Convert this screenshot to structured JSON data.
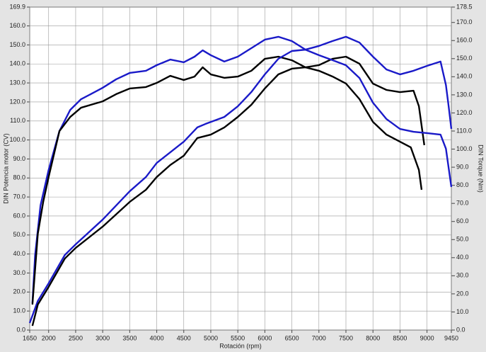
{
  "chart_data": {
    "type": "line",
    "xlabel": "Rotación (rpm)",
    "ylabel": "DIN Potencia motor (CV)",
    "y2label": "DIN Torque (Nm)",
    "xlim": [
      1650,
      9450
    ],
    "xticks": [
      1650,
      2000,
      2500,
      3000,
      3500,
      4000,
      4500,
      5000,
      5500,
      6000,
      6500,
      7000,
      7500,
      8000,
      8500,
      9000,
      9450
    ],
    "ylim": [
      0,
      169.9
    ],
    "yticks": [
      {
        "value": 0,
        "label": "0.0"
      },
      {
        "value": 10,
        "label": "10.0"
      },
      {
        "value": 20,
        "label": "20.0"
      },
      {
        "value": 30,
        "label": "30.0"
      },
      {
        "value": 40,
        "label": "40.0"
      },
      {
        "value": 50,
        "label": "50.0"
      },
      {
        "value": 60,
        "label": "60.0"
      },
      {
        "value": 70,
        "label": "70.0"
      },
      {
        "value": 80,
        "label": "80.0"
      },
      {
        "value": 90,
        "label": "90.0"
      },
      {
        "value": 100,
        "label": "100.0"
      },
      {
        "value": 110,
        "label": "110.0"
      },
      {
        "value": 120,
        "label": "120.0"
      },
      {
        "value": 130,
        "label": "130.0"
      },
      {
        "value": 140,
        "label": "140.0"
      },
      {
        "value": 150,
        "label": "150.0"
      },
      {
        "value": 160,
        "label": "160.0"
      },
      169.9
    ],
    "y2lim": [
      0,
      178.5
    ],
    "y2ticks": [
      {
        "value": 0,
        "label": "0.0"
      },
      {
        "value": 10,
        "label": "10.0"
      },
      {
        "value": 20,
        "label": "20.0"
      },
      {
        "value": 30,
        "label": "30.0"
      },
      {
        "value": 40,
        "label": "40.0"
      },
      {
        "value": 50,
        "label": "50.0"
      },
      {
        "value": 60,
        "label": "60.0"
      },
      {
        "value": 70,
        "label": "70.0"
      },
      {
        "value": 80,
        "label": "80.0"
      },
      {
        "value": 90,
        "label": "90.0"
      },
      {
        "value": 100,
        "label": "100.0"
      },
      {
        "value": 110,
        "label": "110.0"
      },
      {
        "value": 120,
        "label": "120.0"
      },
      {
        "value": 130,
        "label": "130.0"
      },
      {
        "value": 140,
        "label": "140.0"
      },
      {
        "value": 150,
        "label": "150.0"
      },
      {
        "value": 160,
        "label": "160.0"
      },
      {
        "value": 170,
        "label": "170.0"
      },
      178.5
    ],
    "grid": true,
    "series": [
      {
        "color": "#1a1ac8",
        "axis": "y2",
        "x": [
          1700,
          1750,
          1850,
          2000,
          2200,
          2400,
          2600,
          2800,
          3000,
          3250,
          3500,
          3800,
          4000,
          4250,
          4500,
          4700,
          4850,
          5000,
          5250,
          5500,
          5750,
          6000,
          6250,
          6500,
          6750,
          7000,
          7250,
          7500,
          7750,
          8000,
          8250,
          8500,
          8750,
          9000,
          9250,
          9350,
          9400,
          9450
        ],
        "values": [
          14.9,
          41.5,
          68.9,
          88.5,
          110,
          121.7,
          127.6,
          130.7,
          133.9,
          138.6,
          142.1,
          143.3,
          146.4,
          149.5,
          148,
          151.1,
          154.6,
          151.9,
          148.4,
          151.1,
          155.8,
          160.5,
          162.1,
          159.7,
          155,
          157,
          159.7,
          162.1,
          158.9,
          151.1,
          144,
          141.3,
          143.3,
          146,
          148.4,
          135.4,
          123.7,
          111.2
        ]
      },
      {
        "color": "#000000",
        "axis": "y2",
        "x": [
          1700,
          1800,
          1900,
          2000,
          2200,
          2400,
          2600,
          3000,
          3250,
          3500,
          3800,
          4000,
          4250,
          4500,
          4700,
          4850,
          5000,
          5250,
          5500,
          5750,
          6000,
          6250,
          6500,
          6750,
          7000,
          7250,
          7500,
          7750,
          8000,
          8250,
          8500,
          8750,
          8850,
          8950
        ],
        "values": [
          14.1,
          53.2,
          70.9,
          84.6,
          110,
          117.8,
          122.9,
          126.4,
          130.4,
          133.5,
          134.3,
          136.6,
          140.5,
          138.2,
          140.1,
          145.2,
          141.3,
          139.4,
          140.1,
          143.3,
          149.9,
          151.1,
          149.1,
          145.2,
          146.4,
          149.9,
          151.1,
          147.2,
          136.2,
          132.7,
          131.5,
          132.3,
          123.7,
          102.2
        ]
      },
      {
        "color": "#1a1ac8",
        "x": [
          1650,
          1800,
          2000,
          2300,
          2500,
          3000,
          3500,
          3800,
          4000,
          4250,
          4500,
          4750,
          4900,
          5250,
          5500,
          5750,
          6000,
          6250,
          6500,
          6750,
          7000,
          7250,
          7500,
          7750,
          8000,
          8250,
          8500,
          8750,
          9000,
          9250,
          9350,
          9450
        ],
        "values": [
          3.7,
          15.3,
          24.6,
          39.5,
          45.1,
          58.1,
          73,
          80.5,
          87.9,
          93.5,
          99.1,
          106.6,
          108.4,
          112.1,
          117.7,
          125.2,
          134.5,
          142.7,
          146.8,
          147.5,
          144.6,
          142,
          139.3,
          132.6,
          119.6,
          111,
          105.8,
          104.3,
          103.6,
          102.8,
          95.4,
          75.3
        ]
      },
      {
        "color": "#000000",
        "x": [
          1700,
          1800,
          2000,
          2300,
          2500,
          3000,
          3500,
          3800,
          4000,
          4250,
          4500,
          4750,
          5000,
          5250,
          5500,
          5750,
          6000,
          6250,
          6500,
          6750,
          7000,
          7250,
          7500,
          7750,
          8000,
          8250,
          8500,
          8700,
          8850,
          8900
        ],
        "values": [
          2.2,
          13.4,
          22.7,
          37.6,
          43.2,
          54.4,
          67.4,
          73.8,
          80.5,
          86.8,
          91.7,
          101,
          102.8,
          106.6,
          112.1,
          118.5,
          127.1,
          134.5,
          137.5,
          138.2,
          136.4,
          133.4,
          129.7,
          121.5,
          109.5,
          102.8,
          99.1,
          96.1,
          84.2,
          73.8
        ]
      }
    ]
  }
}
